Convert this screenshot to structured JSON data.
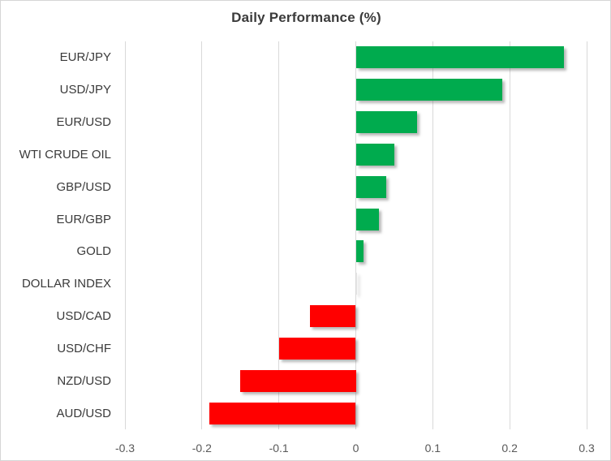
{
  "chart_data": {
    "type": "bar",
    "orientation": "horizontal",
    "title": "Daily Performance (%)",
    "categories": [
      "EUR/JPY",
      "USD/JPY",
      "EUR/USD",
      "WTI CRUDE OIL",
      "GBP/USD",
      "EUR/GBP",
      "GOLD",
      "DOLLAR INDEX",
      "USD/CAD",
      "USD/CHF",
      "NZD/USD",
      "AUD/USD"
    ],
    "values": [
      0.27,
      0.19,
      0.08,
      0.05,
      0.04,
      0.03,
      0.01,
      0.0,
      -0.06,
      -0.1,
      -0.15,
      -0.19
    ],
    "xlabel": "",
    "ylabel": "",
    "xlim": [
      -0.3,
      0.3
    ],
    "xticks": [
      -0.3,
      -0.2,
      -0.1,
      0,
      0.1,
      0.2,
      0.3
    ],
    "xtick_labels": [
      "-0.3",
      "-0.2",
      "-0.1",
      "0",
      "0.1",
      "0.2",
      "0.3"
    ],
    "grid": true,
    "legend": "none",
    "colors": {
      "positive": "#00AB4E",
      "negative": "#FF0000",
      "near_zero": "#E6E6E6",
      "gridline": "#D9D9D9",
      "title_text": "#3B3B3B",
      "category_text": "#3A3A3A",
      "tick_text": "#595959",
      "background": "#FFFFFF"
    }
  }
}
